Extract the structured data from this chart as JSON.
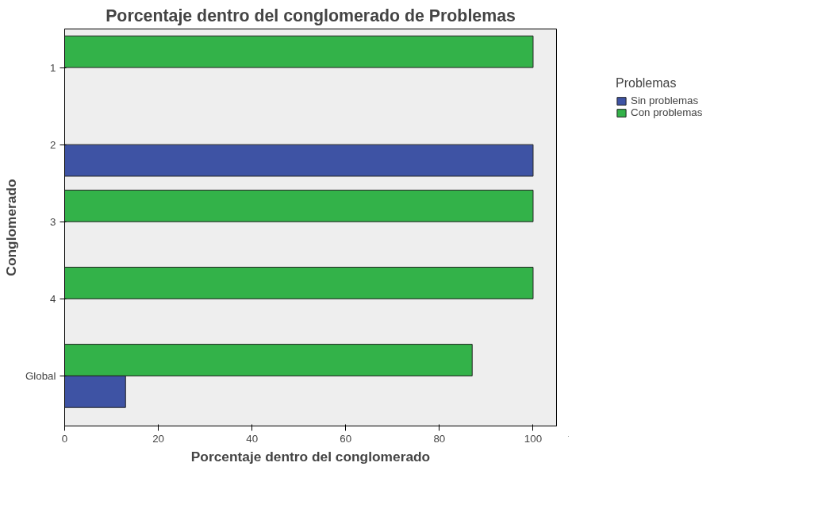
{
  "chart_data": {
    "type": "bar",
    "orientation": "horizontal",
    "title": "Porcentaje dentro del conglomerado de Problemas",
    "xlabel": "Porcentaje dentro del conglomerado",
    "ylabel": "Conglomerado",
    "legend_title": "Problemas",
    "legend": "right",
    "grid": false,
    "categories": [
      "1",
      "2",
      "3",
      "4",
      "Global"
    ],
    "series": [
      {
        "name": "Con problemas",
        "color": "#33b249",
        "values": [
          100,
          0,
          100,
          100,
          87
        ]
      },
      {
        "name": "Sin problemas",
        "color": "#3e53a4",
        "values": [
          0,
          100,
          0,
          0,
          13
        ]
      }
    ],
    "xlim": [
      0,
      105
    ],
    "xticks": [
      0,
      20,
      40,
      60,
      80,
      100
    ]
  }
}
